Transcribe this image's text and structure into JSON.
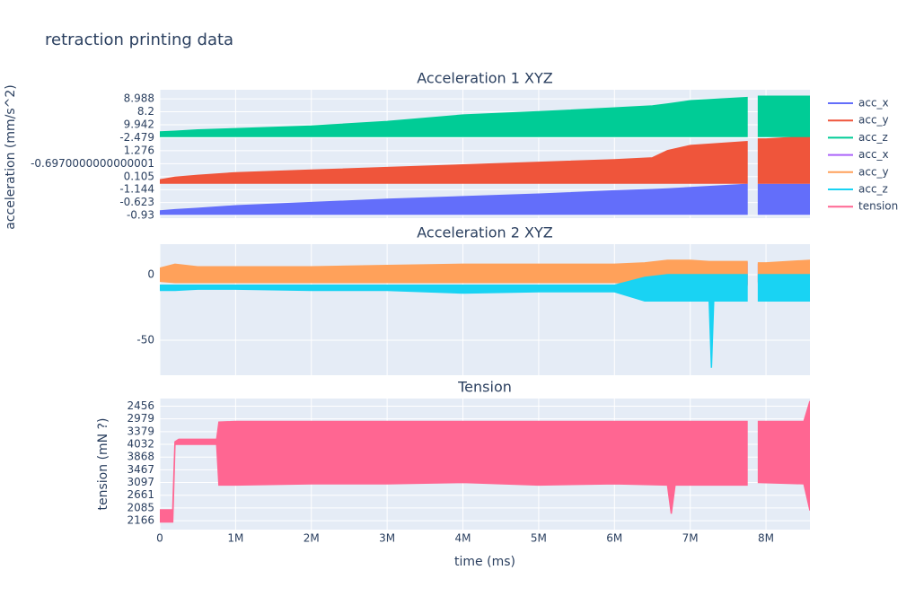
{
  "title": "retraction printing data",
  "chart_data": [
    {
      "type": "area",
      "title": "Acceleration 1 XYZ",
      "ylabel": "acceleration (mm/s^2)",
      "x": [
        0,
        200000,
        500000,
        1000000,
        2000000,
        3000000,
        4000000,
        5000000,
        6000000,
        6500000,
        6700000,
        7000000,
        7750000,
        7850000,
        7900000,
        8000000,
        8580000
      ],
      "xlim": [
        0,
        8580000
      ],
      "ylim": [
        -0.2,
        9.7
      ],
      "yticks": [
        {
          "value": 0,
          "label": "-0.93"
        },
        {
          "value": 1,
          "label": "-0.623"
        },
        {
          "value": 2,
          "label": "-1.144"
        },
        {
          "value": 3,
          "label": "0.105"
        },
        {
          "value": 4,
          "label": "-0.6970000000000001"
        },
        {
          "value": 5,
          "label": "1.276"
        },
        {
          "value": 6,
          "label": "-2.479"
        },
        {
          "value": 7,
          "label": "9.942"
        },
        {
          "value": 8,
          "label": "8.2"
        },
        {
          "value": 9,
          "label": "8.988"
        }
      ],
      "grid": true,
      "series": [
        {
          "name": "acc_x",
          "color": "#636efa",
          "high": [
            0.35,
            0.45,
            0.55,
            0.75,
            1.0,
            1.25,
            1.45,
            1.65,
            1.9,
            2.0,
            2.05,
            2.15,
            2.4,
            null,
            2.4,
            2.4,
            2.4
          ],
          "low": [
            0.1,
            0.1,
            0.1,
            0.1,
            0.1,
            0.1,
            0.1,
            0.1,
            0.1,
            0.1,
            0.1,
            0.1,
            0.1,
            null,
            0.1,
            0.1,
            0.1
          ]
        },
        {
          "name": "acc_y",
          "color": "#ef553b",
          "high": [
            2.75,
            2.95,
            3.1,
            3.3,
            3.5,
            3.7,
            3.9,
            4.1,
            4.3,
            4.45,
            5.0,
            5.4,
            5.7,
            null,
            5.9,
            5.9,
            6.1
          ],
          "low": [
            2.5,
            2.5,
            2.5,
            2.5,
            2.5,
            2.5,
            2.5,
            2.5,
            2.5,
            2.5,
            2.5,
            2.5,
            2.5,
            null,
            2.5,
            2.5,
            2.5
          ]
        },
        {
          "name": "acc_z",
          "color": "#00cc96",
          "high": [
            6.45,
            6.5,
            6.6,
            6.7,
            6.9,
            7.25,
            7.75,
            8.0,
            8.3,
            8.45,
            8.6,
            8.85,
            9.1,
            null,
            9.2,
            9.2,
            9.2
          ],
          "low": [
            6.1,
            6.1,
            6.1,
            6.1,
            6.1,
            6.1,
            6.1,
            6.1,
            6.1,
            6.1,
            6.1,
            6.1,
            6.1,
            null,
            6.1,
            6.1,
            6.1
          ]
        }
      ]
    },
    {
      "type": "area",
      "title": "Acceleration 2 XYZ",
      "x": [
        0,
        200000,
        500000,
        1000000,
        2000000,
        3000000,
        4000000,
        5000000,
        6000000,
        6400000,
        6700000,
        7000000,
        7250000,
        7280000,
        7310000,
        7750000,
        7850000,
        7900000,
        8000000,
        8580000
      ],
      "xlim": [
        0,
        8580000
      ],
      "ylim": [
        -76.7,
        23.3
      ],
      "yticks": [
        -50,
        0
      ],
      "grid": true,
      "series": [
        {
          "name": "acc_x",
          "color": "#ab63fa",
          "high": [
            4,
            6,
            5,
            5,
            5,
            6,
            6,
            6,
            6,
            7,
            9,
            9,
            9,
            9,
            9,
            9,
            null,
            8,
            8,
            9
          ],
          "low": [
            -4,
            -5,
            -5,
            -5,
            -5,
            -5,
            -5,
            -5,
            -5,
            -6,
            -7,
            -7,
            -7,
            -7,
            -7,
            -7,
            null,
            -5,
            -5,
            -5
          ]
        },
        {
          "name": "acc_y",
          "color": "#ffa15a",
          "high": [
            5,
            8,
            6,
            6,
            6,
            7,
            8,
            8,
            8,
            9,
            11,
            11,
            10,
            10,
            10,
            10,
            null,
            9,
            9,
            11
          ],
          "low": [
            -5,
            -6,
            -6,
            -6,
            -6,
            -6,
            -6,
            -6,
            -6,
            -7,
            -8,
            -8,
            -8,
            -8,
            -8,
            -8,
            null,
            -6,
            -6,
            -6
          ]
        },
        {
          "name": "acc_z",
          "color": "#19d3f3",
          "high": [
            -8,
            -8,
            -8,
            -8,
            -8,
            -8,
            -8,
            -8,
            -8,
            -2,
            0,
            0,
            0,
            0,
            0,
            0,
            null,
            0,
            0,
            0
          ],
          "low": [
            -12,
            -12,
            -11,
            -11,
            -12,
            -12,
            -14,
            -13,
            -13,
            -20,
            -20,
            -20,
            -20,
            -71,
            -20,
            -20,
            null,
            -20,
            -20,
            -20
          ]
        }
      ]
    },
    {
      "type": "area",
      "title": "Tension",
      "ylabel": "tension (mN ?)",
      "xlabel": "time (ms)",
      "x": [
        0,
        170000,
        200000,
        250000,
        750000,
        780000,
        1000000,
        2000000,
        3000000,
        4000000,
        5000000,
        6000000,
        6700000,
        6750000,
        6800000,
        7750000,
        7850000,
        7900000,
        8500000,
        8580000
      ],
      "xlim": [
        0,
        8580000
      ],
      "xticks": [
        0,
        {
          "value": 1000000,
          "label": "1M"
        },
        {
          "value": 2000000,
          "label": "2M"
        },
        {
          "value": 3000000,
          "label": "3M"
        },
        {
          "value": 4000000,
          "label": "4M"
        },
        {
          "value": 5000000,
          "label": "5M"
        },
        {
          "value": 6000000,
          "label": "6M"
        },
        {
          "value": 7000000,
          "label": "7M"
        },
        {
          "value": 8000000,
          "label": "8M"
        }
      ],
      "ylim": [
        -0.7,
        9.6
      ],
      "yticks": [
        {
          "value": 0,
          "label": "2166"
        },
        {
          "value": 1,
          "label": "2085"
        },
        {
          "value": 2,
          "label": "2661"
        },
        {
          "value": 3,
          "label": "3097"
        },
        {
          "value": 4,
          "label": "3467"
        },
        {
          "value": 5,
          "label": "3868"
        },
        {
          "value": 6,
          "label": "4032"
        },
        {
          "value": 7,
          "label": "3379"
        },
        {
          "value": 8,
          "label": "2979"
        },
        {
          "value": 9,
          "label": "2456"
        }
      ],
      "grid": true,
      "series": [
        {
          "name": "tension",
          "color": "#ff6692",
          "high": [
            0.85,
            0.85,
            6.2,
            6.4,
            6.4,
            7.75,
            7.8,
            7.8,
            7.8,
            7.8,
            7.8,
            7.8,
            7.8,
            7.8,
            7.8,
            7.8,
            null,
            7.8,
            7.8,
            9.4
          ],
          "low": [
            -0.1,
            -0.1,
            6.0,
            6.0,
            6.0,
            2.8,
            2.8,
            2.9,
            2.9,
            3.0,
            2.8,
            2.9,
            2.8,
            0.55,
            2.8,
            2.8,
            null,
            3.0,
            2.9,
            0.8
          ]
        }
      ]
    }
  ]
}
